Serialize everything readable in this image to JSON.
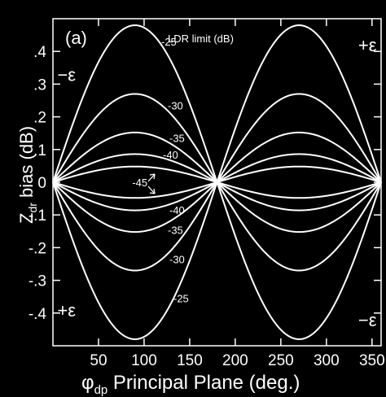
{
  "chart_data": {
    "type": "line",
    "panel_label": "(a)",
    "xlabel": {
      "symbol": "φ",
      "subscript": "dp",
      "text": " Principal Plane (deg.)"
    },
    "ylabel": {
      "symbol": "Z",
      "subscript": "dr",
      "text": " bias (dB)"
    },
    "xlim": [
      0,
      360
    ],
    "ylim": [
      -0.5,
      0.5
    ],
    "xticks": [
      50,
      100,
      150,
      200,
      250,
      300,
      350
    ],
    "yticks": [
      0.4,
      0.3,
      0.2,
      0.1,
      0,
      -0.1,
      -0.2,
      -0.3,
      -0.4
    ],
    "ytick_labels": [
      ".4",
      ".3",
      ".2",
      ".1",
      "0",
      "-.1",
      "-.2",
      "-.3",
      "-.4"
    ],
    "legend_title": "LDR limit (dB)",
    "series": [
      {
        "ldr": "-25",
        "amplitude": 0.48
      },
      {
        "ldr": "-30",
        "amplitude": 0.27
      },
      {
        "ldr": "-35",
        "amplitude": 0.152
      },
      {
        "ldr": "-40",
        "amplitude": 0.086
      },
      {
        "ldr": "-45",
        "amplitude": 0.048
      }
    ],
    "curve_labels": [
      {
        "text": "-25",
        "x": 92,
        "y": 0.43
      },
      {
        "text": "-30",
        "x": 92,
        "y": 0.235
      },
      {
        "text": "-35",
        "x": 92,
        "y": 0.135
      },
      {
        "text": "-40",
        "x": 92,
        "y": 0.085
      },
      {
        "text": "-45",
        "x": 78,
        "y": 0.0
      },
      {
        "text": "-40",
        "x": 92,
        "y": -0.085
      },
      {
        "text": "-35",
        "x": 92,
        "y": -0.145
      },
      {
        "text": "-30",
        "x": 92,
        "y": -0.235
      },
      {
        "text": "-25",
        "x": 92,
        "y": -0.355
      }
    ],
    "region_labels": [
      {
        "text": "−ε",
        "x": 15,
        "y": 0.33
      },
      {
        "text": "+ε",
        "x": 345,
        "y": 0.42
      },
      {
        "text": "+ε",
        "x": 15,
        "y": -0.39
      },
      {
        "text": "−ε",
        "x": 345,
        "y": -0.42
      }
    ]
  }
}
